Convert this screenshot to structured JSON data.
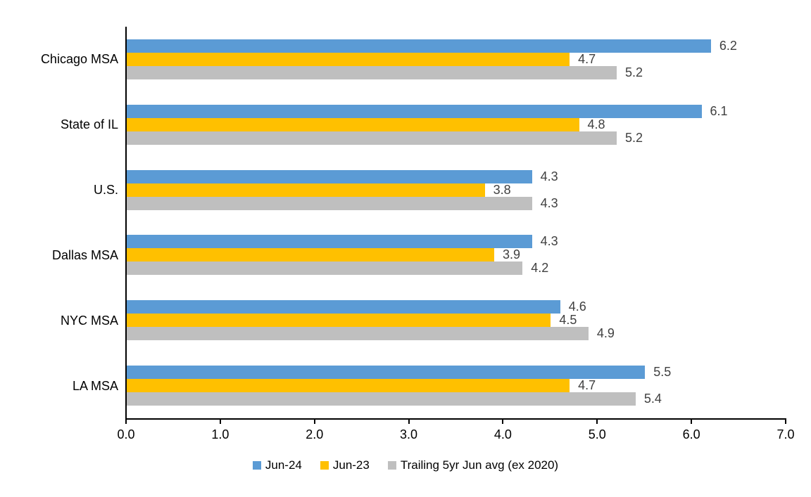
{
  "chart_data": {
    "type": "bar",
    "orientation": "horizontal",
    "title": "",
    "xlabel": "",
    "ylabel": "",
    "categories": [
      "Chicago MSA",
      "State of IL",
      "U.S.",
      "Dallas MSA",
      "NYC MSA",
      "LA MSA"
    ],
    "series": [
      {
        "name": "Jun-24",
        "color": "#5B9BD5",
        "values": [
          6.2,
          6.1,
          4.3,
          4.3,
          4.6,
          5.5
        ]
      },
      {
        "name": "Jun-23",
        "color": "#FFC000",
        "values": [
          4.7,
          4.8,
          3.8,
          3.9,
          4.5,
          4.7
        ]
      },
      {
        "name": "Trailing 5yr Jun avg (ex 2020)",
        "color": "#BFBFBF",
        "values": [
          5.2,
          5.2,
          4.3,
          4.2,
          4.9,
          5.4
        ]
      }
    ],
    "data_labels": [
      [
        "6.2",
        "4.7",
        "5.2"
      ],
      [
        "6.1",
        "4.8",
        "5.2"
      ],
      [
        "4.3",
        "3.8",
        "4.3"
      ],
      [
        "4.3",
        "3.9",
        "4.2"
      ],
      [
        "4.6",
        "4.5",
        "4.9"
      ],
      [
        "5.5",
        "4.7",
        "5.4"
      ]
    ],
    "xlim": [
      0,
      7
    ],
    "x_ticks": [
      "0.0",
      "1.0",
      "2.0",
      "3.0",
      "4.0",
      "5.0",
      "6.0",
      "7.0"
    ],
    "grid": false,
    "legend_position": "bottom",
    "colors": {
      "axis": "#000000",
      "data_label": "#404040",
      "background": "#ffffff"
    }
  }
}
